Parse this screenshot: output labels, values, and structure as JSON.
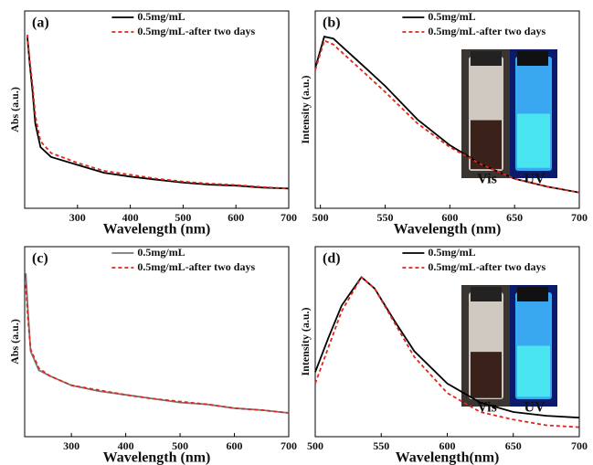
{
  "chart_data": [
    {
      "type": "line",
      "panel_label": "(a)",
      "x_label": "Wavelength (nm)",
      "y_label": "Abs (a.u.)",
      "xlim": [
        200,
        700
      ],
      "ylim": [
        0,
        1
      ],
      "xticks": [
        300,
        400,
        500,
        600,
        700
      ],
      "legend": "upper right",
      "x": [
        205,
        210,
        215,
        220,
        230,
        250,
        300,
        350,
        400,
        450,
        500,
        550,
        600,
        650,
        700
      ],
      "series": [
        {
          "name": "0.5mg/mL",
          "color": "#000000",
          "dash": false,
          "values": [
            0.87,
            0.72,
            0.59,
            0.43,
            0.31,
            0.26,
            0.22,
            0.18,
            0.16,
            0.145,
            0.13,
            0.12,
            0.115,
            0.105,
            0.1
          ]
        },
        {
          "name": "0.5mg/mL-after two days",
          "color": "#e0251b",
          "dash": true,
          "values": [
            0.88,
            0.74,
            0.62,
            0.47,
            0.34,
            0.28,
            0.23,
            0.19,
            0.17,
            0.15,
            0.135,
            0.125,
            0.118,
            0.108,
            0.1
          ]
        }
      ]
    },
    {
      "type": "line",
      "panel_label": "(b)",
      "x_label": "Wavelength (nm)",
      "y_label": "Intensity (a.u.)",
      "xlim": [
        496,
        700
      ],
      "ylim": [
        0,
        1
      ],
      "xticks": [
        500,
        550,
        600,
        650,
        700
      ],
      "legend": "upper right",
      "inset_labels": [
        "Vis",
        "UV"
      ],
      "x": [
        496,
        503,
        510,
        520,
        535,
        550,
        575,
        600,
        625,
        650,
        675,
        700
      ],
      "series": [
        {
          "name": "0.5mg/mL",
          "color": "#000000",
          "dash": false,
          "values": [
            0.71,
            0.87,
            0.86,
            0.8,
            0.71,
            0.62,
            0.45,
            0.32,
            0.22,
            0.15,
            0.11,
            0.08
          ]
        },
        {
          "name": "0.5mg/mL-after two days",
          "color": "#e0251b",
          "dash": true,
          "values": [
            0.7,
            0.85,
            0.83,
            0.77,
            0.68,
            0.59,
            0.43,
            0.31,
            0.22,
            0.15,
            0.11,
            0.08
          ]
        }
      ]
    },
    {
      "type": "line",
      "panel_label": "(c)",
      "x_label": "Wavelength (nm)",
      "y_label": "Abs (a.u.)",
      "xlim": [
        214,
        700
      ],
      "ylim": [
        0,
        1
      ],
      "xticks": [
        300,
        400,
        500,
        600,
        700
      ],
      "legend": "upper right",
      "x": [
        216,
        220,
        225,
        240,
        260,
        300,
        350,
        400,
        450,
        500,
        550,
        600,
        650,
        700
      ],
      "series": [
        {
          "name": "0.5mg/mL",
          "color": "#777777",
          "dash": false,
          "values": [
            0.86,
            0.66,
            0.45,
            0.35,
            0.32,
            0.27,
            0.24,
            0.22,
            0.2,
            0.18,
            0.17,
            0.15,
            0.14,
            0.125
          ]
        },
        {
          "name": "0.5mg/mL-after two days",
          "color": "#e0251b",
          "dash": true,
          "values": [
            0.8,
            0.62,
            0.46,
            0.36,
            0.32,
            0.27,
            0.245,
            0.22,
            0.2,
            0.185,
            0.17,
            0.15,
            0.14,
            0.125
          ]
        }
      ]
    },
    {
      "type": "line",
      "panel_label": "(d)",
      "x_label": "Wavelength(nm)",
      "y_label": "Intensity (a.u.)",
      "xlim": [
        500,
        700
      ],
      "ylim": [
        0,
        1
      ],
      "xticks": [
        500,
        550,
        600,
        650,
        700
      ],
      "legend": "upper right",
      "inset_labels": [
        "Vis",
        "UV"
      ],
      "x": [
        500,
        510,
        520,
        535,
        545,
        560,
        575,
        600,
        625,
        650,
        675,
        700
      ],
      "series": [
        {
          "name": "0.5mg/mL",
          "color": "#000000",
          "dash": false,
          "values": [
            0.34,
            0.52,
            0.69,
            0.84,
            0.78,
            0.61,
            0.45,
            0.28,
            0.18,
            0.13,
            0.11,
            0.1
          ]
        },
        {
          "name": "0.5mg/mL-after two days",
          "color": "#e0251b",
          "dash": true,
          "values": [
            0.28,
            0.47,
            0.66,
            0.84,
            0.78,
            0.6,
            0.42,
            0.23,
            0.13,
            0.09,
            0.06,
            0.05
          ]
        }
      ]
    }
  ]
}
